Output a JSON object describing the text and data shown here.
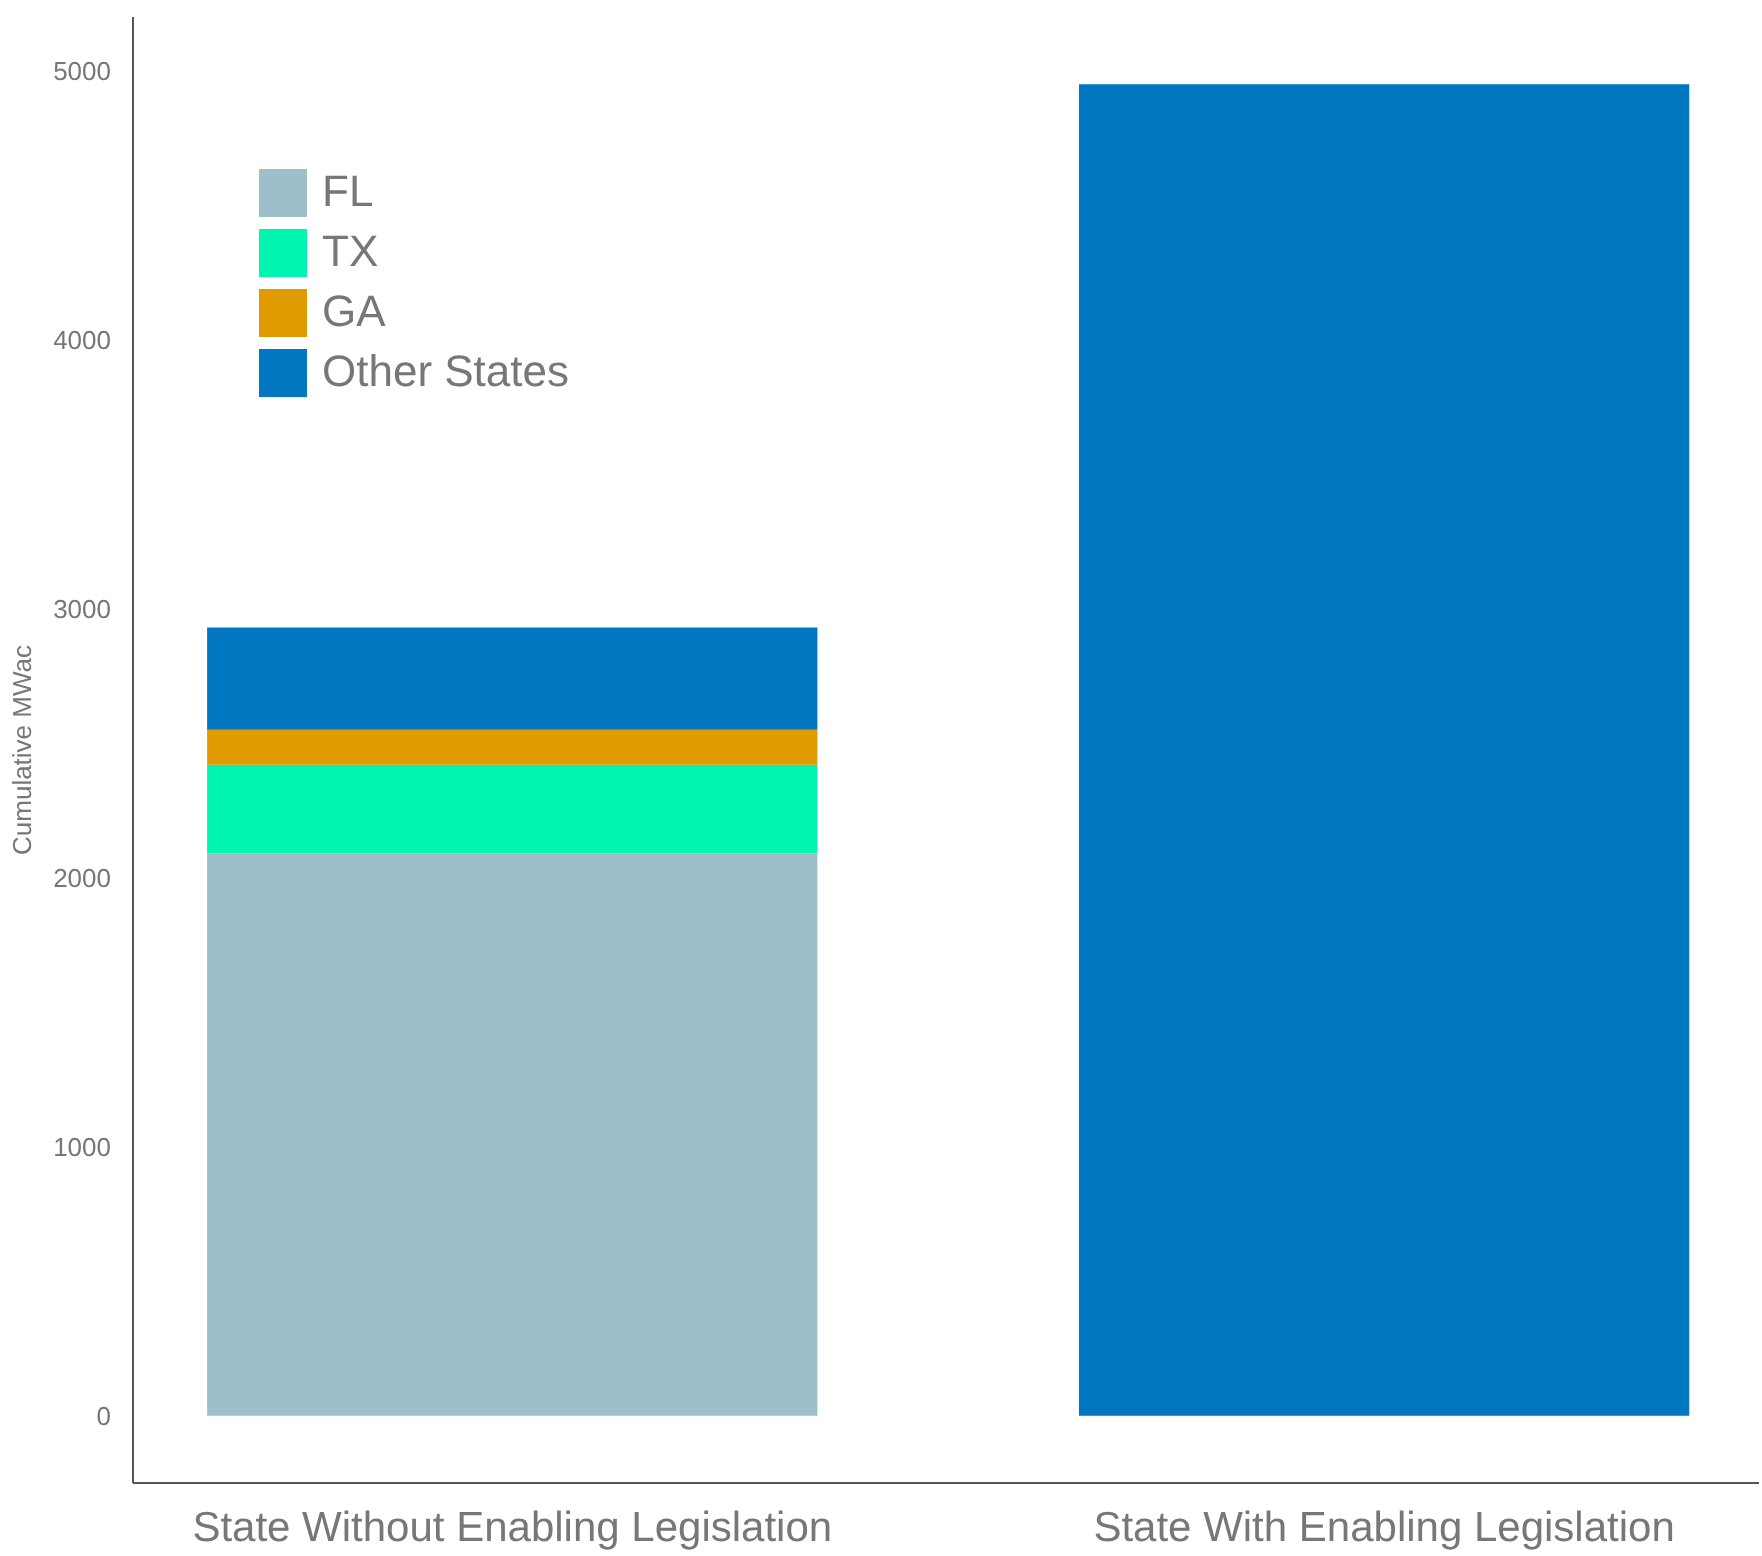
{
  "chart_data": {
    "type": "bar",
    "ylabel": "Cumulative MWac",
    "categories": [
      "State Without Enabling Legislation",
      "State With Enabling Legislation"
    ],
    "stacked": true,
    "ylim": [
      -250,
      5200
    ],
    "yticks": [
      0,
      1000,
      2000,
      3000,
      4000,
      5000
    ],
    "grid": false,
    "legend": "top left",
    "series": [
      {
        "name": "FL",
        "color": "#9dbfcb",
        "values": [
          2090,
          null
        ]
      },
      {
        "name": "TX",
        "color": "#00f5b0",
        "values": [
          330,
          null
        ]
      },
      {
        "name": "GA",
        "color": "#e09b00",
        "values": [
          130,
          null
        ]
      },
      {
        "name": "Other States",
        "color": "#0077c0",
        "values": [
          380,
          4950
        ]
      }
    ]
  }
}
